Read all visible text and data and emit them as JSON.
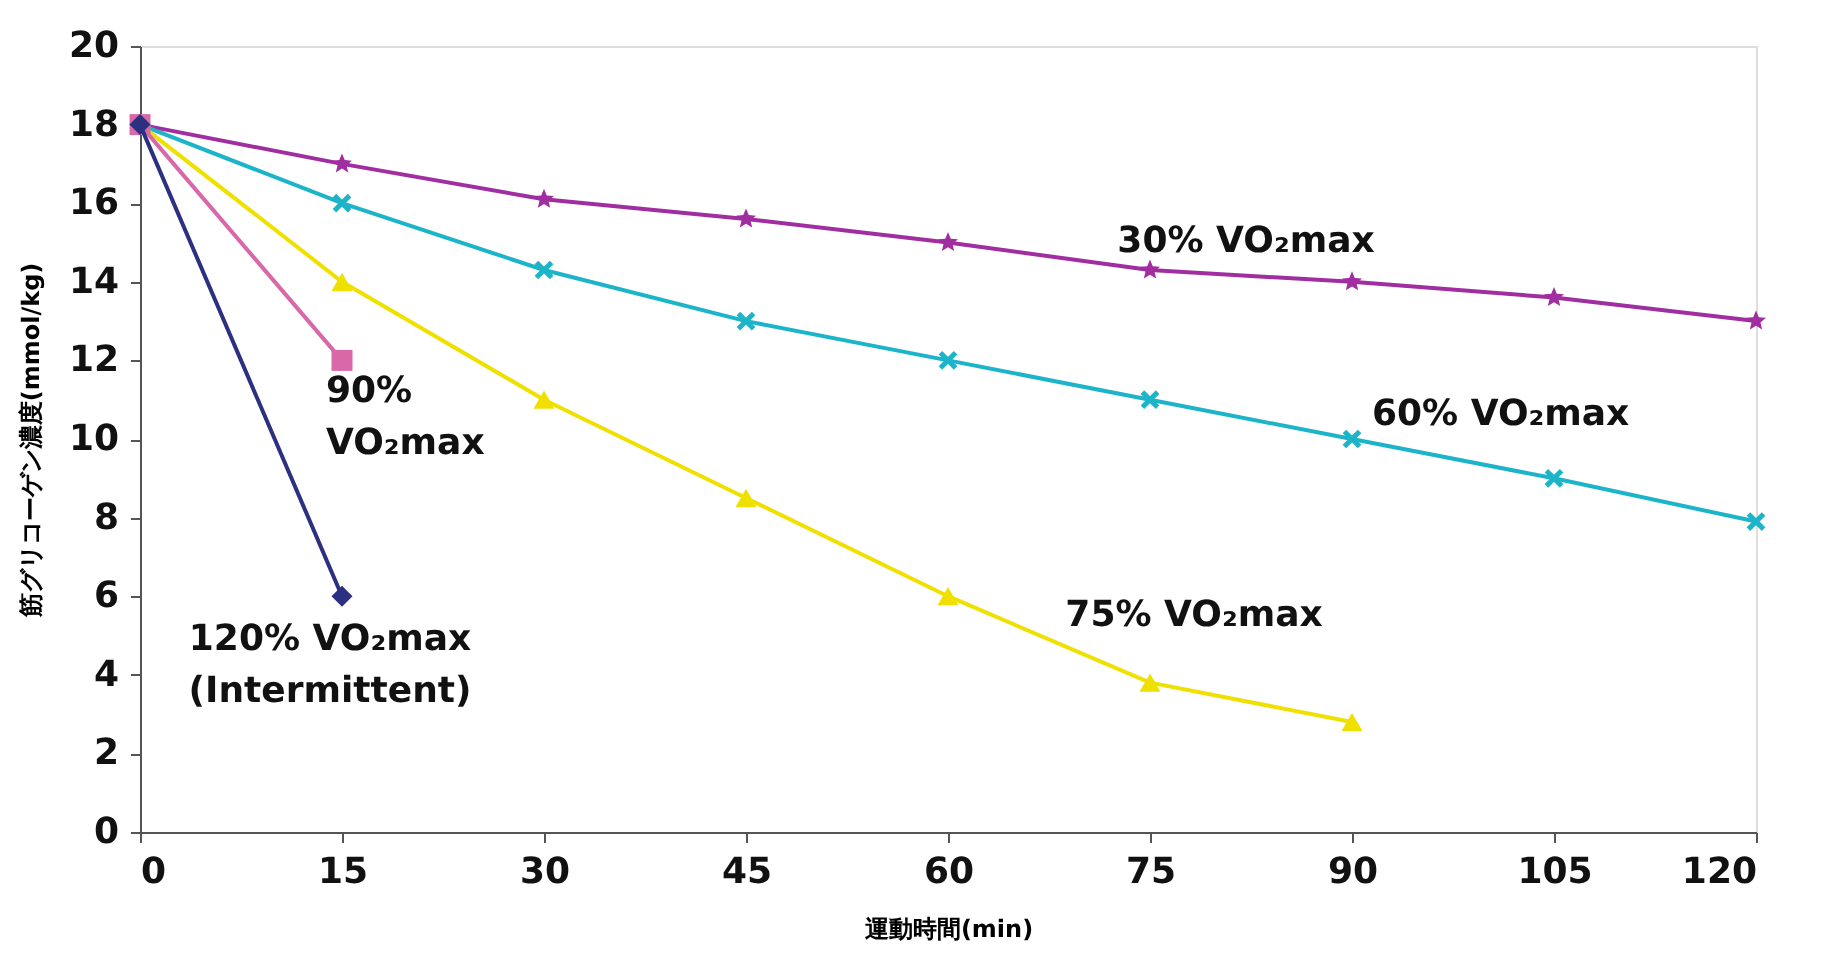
{
  "chart_data": {
    "type": "line",
    "xlabel": "運動時間(min)",
    "ylabel": "筋グリコーゲン濃度(mmol/kg)",
    "xlim": [
      0,
      120
    ],
    "xticks": [
      0,
      15,
      30,
      45,
      60,
      75,
      90,
      105,
      120
    ],
    "ylim": [
      0,
      20
    ],
    "yticks": [
      0,
      2,
      4,
      6,
      8,
      10,
      12,
      14,
      16,
      18,
      20
    ],
    "grid": false,
    "legend": false,
    "line_style": "solid",
    "series": [
      {
        "name": "30% VO₂max",
        "color": "#a02ea0",
        "marker": "star",
        "x": [
          0,
          15,
          30,
          45,
          60,
          75,
          90,
          105,
          120
        ],
        "values": [
          18,
          17,
          16.1,
          15.6,
          15,
          14.3,
          14,
          13.6,
          13
        ]
      },
      {
        "name": "60% VO₂max",
        "color": "#1cb4c8",
        "marker": "cross",
        "x": [
          0,
          15,
          30,
          45,
          60,
          75,
          90,
          105,
          120
        ],
        "values": [
          18,
          16,
          14.3,
          13,
          12,
          11,
          10,
          9,
          7.9
        ]
      },
      {
        "name": "75% VO₂max",
        "color": "#f0e000",
        "marker": "triangle",
        "x": [
          0,
          15,
          30,
          45,
          60,
          75,
          90
        ],
        "values": [
          18,
          14,
          11,
          8.5,
          6,
          3.8,
          2.8
        ]
      },
      {
        "name": "90% VO₂max",
        "color": "#d868a8",
        "marker": "square",
        "x": [
          0,
          15
        ],
        "values": [
          18,
          12
        ]
      },
      {
        "name": "120% VO₂max (Intermittent)",
        "color": "#2c3080",
        "marker": "diamond",
        "x": [
          0,
          15
        ],
        "values": [
          18,
          6
        ]
      }
    ]
  }
}
